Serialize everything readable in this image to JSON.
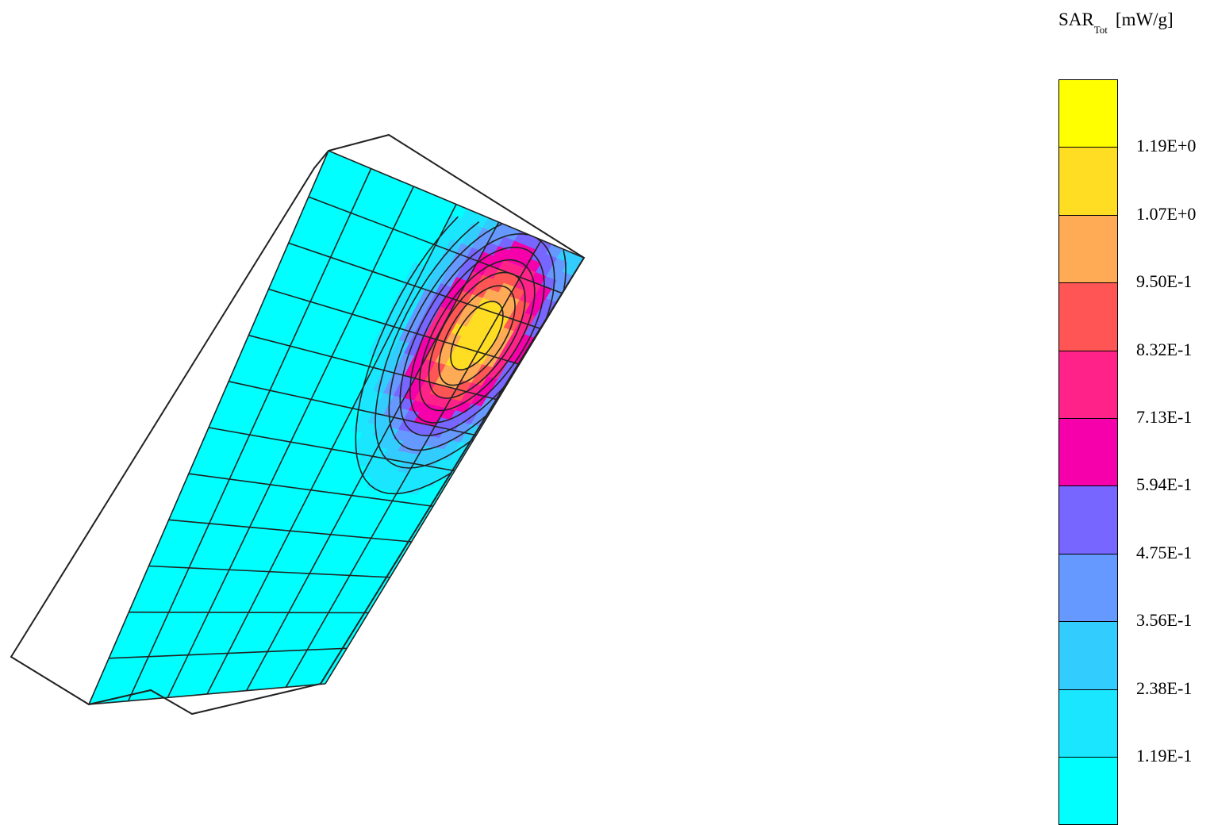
{
  "chart_data": {
    "type": "heatmap",
    "title": {
      "base": "SAR",
      "sub": "Tot",
      "unit": "[mW/g]"
    },
    "legend": {
      "placement": "right",
      "levels": [
        {
          "color": "#00FFFF"
        },
        {
          "color": "#1AE6FF"
        },
        {
          "color": "#33CCFF"
        },
        {
          "color": "#6699FF"
        },
        {
          "color": "#7766FF"
        },
        {
          "color": "#F500AA"
        },
        {
          "color": "#FF2288"
        },
        {
          "color": "#FF5555"
        },
        {
          "color": "#FFAA55"
        },
        {
          "color": "#FFDD22"
        },
        {
          "color": "#FFFF00"
        }
      ],
      "tick_labels": [
        "1.19E-1",
        "2.38E-1",
        "3.56E-1",
        "4.75E-1",
        "5.94E-1",
        "7.13E-1",
        "8.32E-1",
        "9.50E-1",
        "1.07E+0",
        "1.19E+0"
      ]
    },
    "field": {
      "peak_value": 1.19,
      "background_level": 0.0
    }
  }
}
